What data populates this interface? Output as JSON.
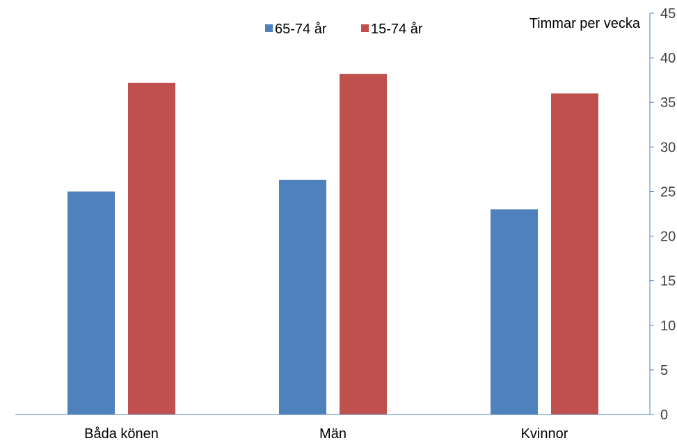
{
  "chart_data": {
    "type": "bar",
    "categories": [
      "Båda könen",
      "Män",
      "Kvinnor"
    ],
    "series": [
      {
        "name": "65-74 år",
        "color": "#4F81BD",
        "values": [
          25,
          26.3,
          23
        ]
      },
      {
        "name": "15-74 år",
        "color": "#C0504D",
        "values": [
          37.2,
          38.2,
          36
        ]
      }
    ],
    "ylabel": "Timmar per vecka",
    "ylim": [
      0,
      45
    ],
    "yticks": [
      0,
      5,
      10,
      15,
      20,
      25,
      30,
      35,
      40,
      45
    ],
    "y_axis_side": "right",
    "axis_color": "#4F81BD",
    "legend_position": "top",
    "grid": false
  }
}
